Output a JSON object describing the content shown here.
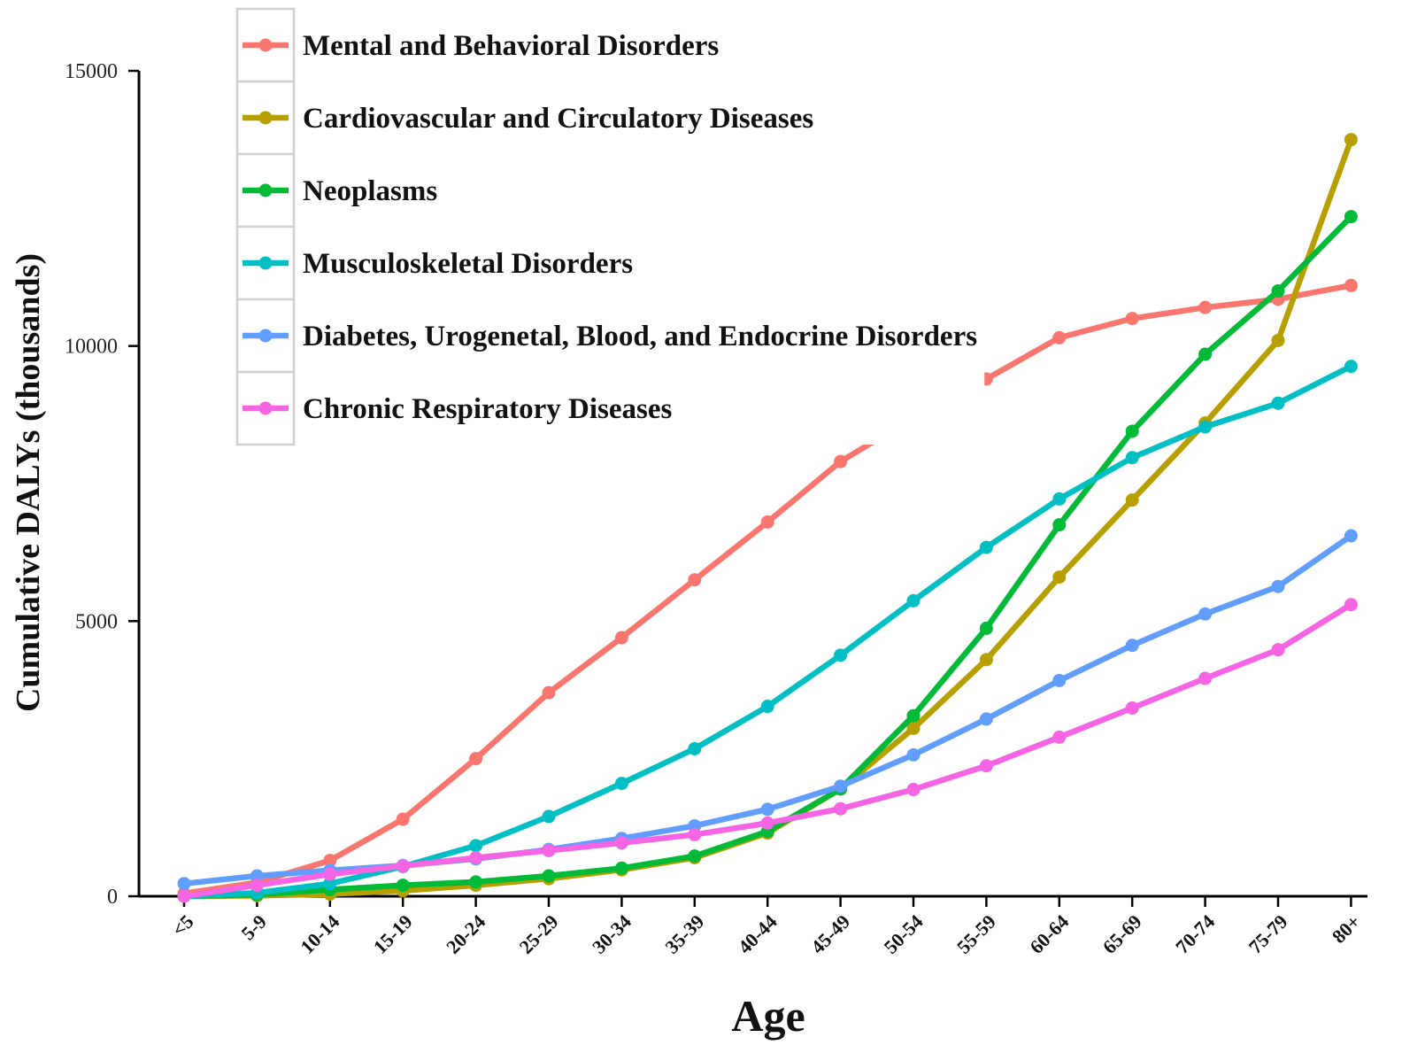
{
  "chart_data": {
    "type": "line",
    "title": "",
    "xlabel": "Age",
    "ylabel": "Cumulative DALYs (thousands)",
    "categories": [
      "<5",
      "5-9",
      "10-14",
      "15-19",
      "20-24",
      "25-29",
      "30-34",
      "35-39",
      "40-44",
      "45-49",
      "50-54",
      "55-59",
      "60-64",
      "65-69",
      "70-74",
      "75-79",
      "80+"
    ],
    "ylim": [
      0,
      15000
    ],
    "yticks": [
      "0",
      "5000",
      "10000",
      "15000"
    ],
    "yticks_values": [
      0,
      5000,
      10000,
      15000
    ],
    "grid": false,
    "legend_position": "top-left",
    "series": [
      {
        "name": "Mental and Behavioral Disorders",
        "color": "#F8766D",
        "values": [
          50,
          250,
          650,
          1400,
          2500,
          3700,
          4700,
          5750,
          6800,
          7900,
          8700,
          9400,
          10150,
          10500,
          10700,
          10850,
          11100
        ]
      },
      {
        "name": "Cardiovascular and Circulatory Diseases",
        "color": "#B79F00",
        "values": [
          0,
          10,
          40,
          100,
          200,
          320,
          480,
          700,
          1150,
          1950,
          3050,
          4300,
          5800,
          7200,
          8600,
          10100,
          13750
        ]
      },
      {
        "name": "Neoplasms",
        "color": "#00BA38",
        "values": [
          0,
          30,
          120,
          200,
          260,
          370,
          510,
          730,
          1180,
          1950,
          3280,
          4870,
          6750,
          8450,
          9850,
          11000,
          12350
        ]
      },
      {
        "name": "Musculoskeletal Disorders",
        "color": "#00BFC4",
        "values": [
          0,
          60,
          230,
          540,
          920,
          1450,
          2050,
          2680,
          3450,
          4380,
          5370,
          6340,
          7220,
          7970,
          8530,
          8960,
          9630
        ]
      },
      {
        "name": "Diabetes, Urogenetal, Blood, and Endocrine Disorders",
        "color": "#619CFF",
        "values": [
          230,
          370,
          470,
          560,
          680,
          850,
          1050,
          1280,
          1580,
          2000,
          2570,
          3220,
          3920,
          4560,
          5130,
          5630,
          6550
        ]
      },
      {
        "name": "Chronic Respiratory Diseases",
        "color": "#F564E3",
        "values": [
          0,
          200,
          400,
          550,
          700,
          830,
          970,
          1120,
          1330,
          1590,
          1940,
          2370,
          2890,
          3420,
          3960,
          4480,
          5300
        ]
      }
    ]
  }
}
